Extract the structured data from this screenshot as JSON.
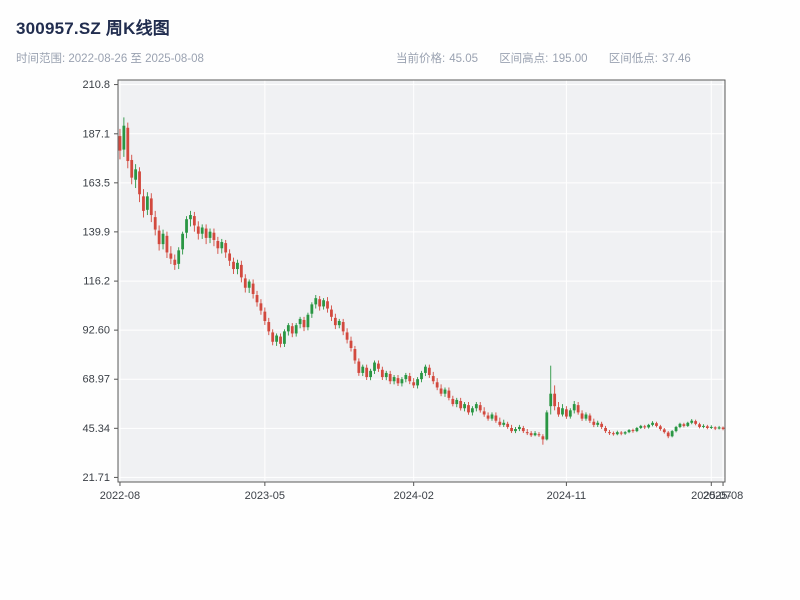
{
  "header": {
    "title": "300957.SZ 周K线图",
    "subtitle": "时间范围: 2022-08-26 至 2025-08-08",
    "stats": [
      {
        "label": "当前价格:",
        "value": "45.05"
      },
      {
        "label": "区间高点:",
        "value": "195.00"
      },
      {
        "label": "区间低点:",
        "value": "37.46"
      }
    ]
  },
  "chart_data": {
    "type": "candlestick",
    "symbol": "300957.SZ",
    "frequency": "weekly",
    "date_start": "2022-08-26",
    "date_end": "2025-08-08",
    "current_price": 45.05,
    "range_high": 195.0,
    "range_low": 37.46,
    "ylim": [
      19.5,
      213.0
    ],
    "grid": true,
    "plot_bg": "#f0f1f3",
    "grid_color": "#ffffff",
    "up_color": "#2a9643",
    "down_color": "#d2493e",
    "y_ticks": [
      {
        "label": "210.8",
        "v": 210.8
      },
      {
        "label": "187.1",
        "v": 187.1
      },
      {
        "label": "163.5",
        "v": 163.5
      },
      {
        "label": "139.9",
        "v": 139.9
      },
      {
        "label": "116.2",
        "v": 116.2
      },
      {
        "label": "92.60",
        "v": 92.6
      },
      {
        "label": "68.97",
        "v": 68.97
      },
      {
        "label": "45.34",
        "v": 45.34
      },
      {
        "label": "21.71",
        "v": 21.71
      }
    ],
    "x_ticks": [
      {
        "label": "2022-08",
        "i": 0
      },
      {
        "label": "2023-05",
        "i": 37
      },
      {
        "label": "2024-02",
        "i": 75
      },
      {
        "label": "2024-11",
        "i": 114
      },
      {
        "label": "2025-07",
        "i": 151
      },
      {
        "label": "2025-08",
        "i": 154
      }
    ],
    "ohlc": [
      [
        186,
        189.5,
        174.8,
        179
      ],
      [
        179.5,
        195,
        176,
        191
      ],
      [
        190,
        192.5,
        170.5,
        174
      ],
      [
        174.5,
        177,
        162.8,
        166
      ],
      [
        165,
        172.5,
        161,
        170
      ],
      [
        169,
        171,
        154.2,
        158
      ],
      [
        157,
        160.5,
        146.8,
        150
      ],
      [
        150.5,
        159,
        148,
        157
      ],
      [
        156,
        158.5,
        144.6,
        148
      ],
      [
        147,
        150,
        138.2,
        141
      ],
      [
        140.5,
        143,
        130.9,
        134
      ],
      [
        134,
        141,
        131.5,
        139
      ],
      [
        138,
        140,
        127.3,
        130
      ],
      [
        129.5,
        133,
        124.4,
        127
      ],
      [
        126.5,
        129,
        121.6,
        124
      ],
      [
        124.5,
        132.5,
        122,
        131
      ],
      [
        131.5,
        140,
        129,
        139
      ],
      [
        139.5,
        147.5,
        136.8,
        146
      ],
      [
        146,
        150,
        142.5,
        148
      ],
      [
        147.5,
        149.5,
        140,
        143
      ],
      [
        142.5,
        145,
        136.2,
        139
      ],
      [
        139,
        143.5,
        136.5,
        142
      ],
      [
        141.5,
        143.5,
        134,
        137
      ],
      [
        137,
        141.5,
        134.5,
        140
      ],
      [
        139.5,
        141.5,
        133,
        136
      ],
      [
        135.5,
        137.5,
        129.3,
        132
      ],
      [
        132,
        136.5,
        129.5,
        135
      ],
      [
        134.5,
        136,
        127.4,
        130
      ],
      [
        129.5,
        131.5,
        123.5,
        126
      ],
      [
        125.5,
        127.5,
        119.6,
        122
      ],
      [
        122,
        126.5,
        119.5,
        125
      ],
      [
        124,
        126,
        115.6,
        118
      ],
      [
        117.5,
        119.5,
        110.7,
        113
      ],
      [
        113,
        117,
        110.5,
        116
      ],
      [
        115,
        117,
        107.8,
        110
      ],
      [
        109.5,
        111.5,
        103.9,
        106
      ],
      [
        105.5,
        107.5,
        100,
        102
      ],
      [
        101.5,
        103.5,
        95.1,
        97
      ],
      [
        96.5,
        98.5,
        90.2,
        92
      ],
      [
        91.5,
        93,
        85.3,
        87
      ],
      [
        87,
        91,
        85,
        90
      ],
      [
        89.5,
        91,
        84.3,
        86
      ],
      [
        86,
        93,
        84.5,
        92
      ],
      [
        92,
        96,
        90,
        95
      ],
      [
        94.5,
        96,
        89.2,
        91
      ],
      [
        91,
        96,
        89.5,
        95
      ],
      [
        95.5,
        99,
        93.5,
        98
      ],
      [
        97.5,
        99,
        92.1,
        94
      ],
      [
        94,
        101,
        92.5,
        100
      ],
      [
        100.5,
        106,
        98.5,
        105
      ],
      [
        105,
        109.5,
        103,
        108
      ],
      [
        107.5,
        109,
        102,
        104
      ],
      [
        104,
        108,
        102.5,
        107
      ],
      [
        106.5,
        108.5,
        101,
        103
      ],
      [
        102.5,
        104.5,
        97,
        99
      ],
      [
        98.5,
        100.5,
        93.1,
        95
      ],
      [
        95,
        98,
        93.5,
        97
      ],
      [
        96.5,
        98,
        90.2,
        92
      ],
      [
        91.5,
        93.5,
        86.2,
        88
      ],
      [
        87.5,
        89.5,
        82.3,
        84
      ],
      [
        83.5,
        85,
        76.4,
        78
      ],
      [
        77.5,
        79,
        70.6,
        72
      ],
      [
        72,
        76,
        70.5,
        75
      ],
      [
        74.5,
        76,
        68.6,
        70
      ],
      [
        70,
        74,
        68.5,
        73
      ],
      [
        73,
        78,
        71.5,
        77
      ],
      [
        76.5,
        78,
        72.5,
        74
      ],
      [
        73.5,
        75,
        68.6,
        70
      ],
      [
        70,
        73,
        68.5,
        72
      ],
      [
        71.5,
        73,
        66.6,
        68
      ],
      [
        68,
        71,
        66.5,
        70
      ],
      [
        69.5,
        71,
        65.7,
        67
      ],
      [
        67,
        70,
        65.5,
        69
      ],
      [
        69,
        72,
        67.5,
        71
      ],
      [
        70.5,
        72,
        66.6,
        68
      ],
      [
        67.5,
        69.5,
        64.7,
        66
      ],
      [
        66,
        70,
        64.5,
        69
      ],
      [
        69,
        73,
        67.5,
        72
      ],
      [
        72,
        76,
        70.5,
        75
      ],
      [
        74.5,
        76,
        69.6,
        71
      ],
      [
        70.5,
        72.5,
        66.6,
        68
      ],
      [
        67.5,
        69.5,
        63.7,
        65
      ],
      [
        64.5,
        66.5,
        60.8,
        62
      ],
      [
        62,
        65,
        60.5,
        64
      ],
      [
        63.5,
        65,
        58.8,
        60
      ],
      [
        59.5,
        61,
        55.9,
        57
      ],
      [
        57,
        60,
        55.5,
        59
      ],
      [
        58.5,
        60,
        53.9,
        55
      ],
      [
        55,
        58,
        53.5,
        57
      ],
      [
        56.5,
        58,
        51.9,
        53
      ],
      [
        53,
        56,
        51.5,
        55
      ],
      [
        55,
        58,
        53.5,
        57
      ],
      [
        56.5,
        58,
        52.9,
        54
      ],
      [
        53.5,
        55.5,
        50.9,
        52
      ],
      [
        51.5,
        53,
        49,
        50
      ],
      [
        50,
        53,
        49,
        52
      ],
      [
        51.5,
        53,
        48,
        49
      ],
      [
        48.5,
        50.5,
        46.1,
        47
      ],
      [
        47,
        49.5,
        46,
        48
      ],
      [
        47.5,
        48.5,
        45.1,
        46
      ],
      [
        45.5,
        47,
        43.1,
        44
      ],
      [
        44,
        46,
        43,
        45
      ],
      [
        45,
        47,
        44,
        46
      ],
      [
        45.5,
        46.5,
        43.1,
        44
      ],
      [
        43.5,
        45,
        42.1,
        43
      ],
      [
        43,
        44,
        41.2,
        42
      ],
      [
        42,
        44,
        41.5,
        43
      ],
      [
        42.5,
        43.5,
        41.2,
        42
      ],
      [
        41.5,
        42.5,
        37.46,
        40
      ],
      [
        40,
        54,
        39.5,
        53
      ],
      [
        56,
        75.5,
        52,
        62
      ],
      [
        62,
        66,
        54,
        56
      ],
      [
        55.5,
        58,
        50.9,
        52
      ],
      [
        52,
        57,
        51,
        55
      ],
      [
        54.5,
        56,
        49.9,
        51
      ],
      [
        51,
        55,
        50,
        54
      ],
      [
        54,
        58.5,
        52.5,
        57
      ],
      [
        56.5,
        58,
        51.9,
        53
      ],
      [
        52.5,
        54,
        48.9,
        50
      ],
      [
        50,
        53,
        49,
        52
      ],
      [
        51.5,
        52.5,
        47.9,
        49
      ],
      [
        48.5,
        50,
        45.9,
        47
      ],
      [
        47,
        49,
        46,
        48
      ],
      [
        47.5,
        48.5,
        45,
        46
      ],
      [
        45.5,
        46.5,
        43.1,
        44
      ],
      [
        43.5,
        44.5,
        42.1,
        43
      ],
      [
        43,
        43.8,
        41.8,
        42.5
      ],
      [
        42.5,
        44.2,
        42,
        43.5
      ],
      [
        43.3,
        44,
        42,
        42.8
      ],
      [
        42.8,
        44,
        42.2,
        43.5
      ],
      [
        43.5,
        45,
        43,
        44.5
      ],
      [
        44.5,
        45.2,
        43.2,
        44
      ],
      [
        44,
        46,
        43.5,
        45.5
      ],
      [
        45.5,
        47,
        45,
        46.5
      ],
      [
        46.3,
        47,
        45,
        45.8
      ],
      [
        45.8,
        47.5,
        45.2,
        47
      ],
      [
        47,
        48.8,
        46.3,
        48
      ],
      [
        47.8,
        48.5,
        45.8,
        46.5
      ],
      [
        46.3,
        47,
        44.2,
        45
      ],
      [
        44.8,
        45.5,
        42.8,
        43.5
      ],
      [
        43.3,
        44,
        40.6,
        41.5
      ],
      [
        41.5,
        44.5,
        41,
        44
      ],
      [
        44,
        46.5,
        43.4,
        46
      ],
      [
        46,
        48,
        45.4,
        47.5
      ],
      [
        47.3,
        48,
        45.8,
        46.5
      ],
      [
        46.5,
        48.5,
        46,
        48
      ],
      [
        48,
        49.8,
        47.3,
        49
      ],
      [
        48.8,
        49.5,
        46.8,
        47.5
      ],
      [
        47.3,
        48,
        45.3,
        46
      ],
      [
        46,
        47.3,
        45.4,
        46.5
      ],
      [
        46.3,
        47,
        44.9,
        45.5
      ],
      [
        45.5,
        46.8,
        45,
        46
      ],
      [
        45.8,
        46.3,
        44.5,
        45.2
      ],
      [
        45.2,
        46.5,
        44.8,
        45.8
      ],
      [
        45.7,
        46.2,
        44.4,
        45.05
      ]
    ]
  }
}
